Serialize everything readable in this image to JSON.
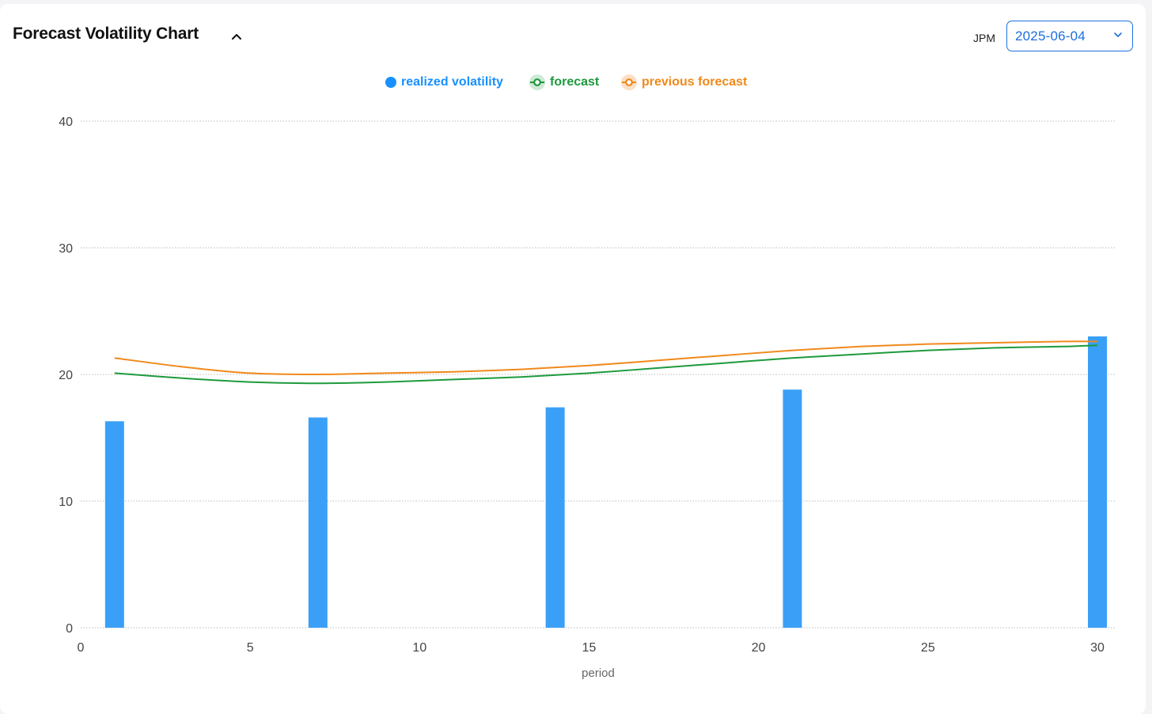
{
  "header": {
    "title": "Forecast Volatility Chart",
    "ticker": "JPM",
    "date_value": "2025-06-04"
  },
  "colors": {
    "realized": "#3aa0f7",
    "forecast": "#1e9a3d",
    "previous_forecast": "#f0891b",
    "accent": "#1d6fe0",
    "grid": "#bdbdbd"
  },
  "icons": {
    "collapse": "chevron-up-icon",
    "dropdown": "chevron-down-icon"
  },
  "chart_data": {
    "type": "bar",
    "title": "",
    "xlabel": "period",
    "ylabel": "",
    "xlim": [
      0,
      30
    ],
    "ylim": [
      0,
      40
    ],
    "x_ticks": [
      0,
      5,
      10,
      15,
      20,
      25,
      30
    ],
    "y_ticks": [
      0,
      10,
      20,
      30,
      40
    ],
    "grid": true,
    "legend_position": "top-center",
    "series": [
      {
        "name": "realized volatility",
        "type": "bar",
        "x": [
          1,
          7,
          14,
          21,
          30
        ],
        "values": [
          16.3,
          16.6,
          17.4,
          18.8,
          23.0
        ]
      },
      {
        "name": "forecast",
        "type": "line",
        "x": [
          1,
          3,
          5,
          7,
          9,
          11,
          13,
          15,
          17,
          19,
          21,
          23,
          25,
          27,
          29,
          30
        ],
        "values": [
          20.1,
          19.7,
          19.4,
          19.3,
          19.4,
          19.6,
          19.8,
          20.1,
          20.5,
          20.9,
          21.3,
          21.6,
          21.9,
          22.1,
          22.2,
          22.3
        ]
      },
      {
        "name": "previous forecast",
        "type": "line",
        "x": [
          1,
          3,
          5,
          7,
          9,
          11,
          13,
          15,
          17,
          19,
          21,
          23,
          25,
          27,
          29,
          30
        ],
        "values": [
          21.3,
          20.6,
          20.1,
          20.0,
          20.1,
          20.2,
          20.4,
          20.7,
          21.1,
          21.5,
          21.9,
          22.2,
          22.4,
          22.5,
          22.6,
          22.6
        ]
      }
    ]
  }
}
